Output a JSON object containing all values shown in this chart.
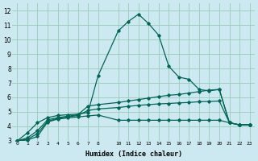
{
  "xlabel": "Humidex (Indice chaleur)",
  "background_color": "#cce8f0",
  "grid_color": "#99ccbb",
  "line_color": "#006655",
  "xlim": [
    -0.5,
    23.5
  ],
  "ylim": [
    3,
    12.5
  ],
  "xticks": [
    0,
    1,
    2,
    3,
    4,
    5,
    6,
    7,
    8,
    10,
    11,
    12,
    13,
    14,
    15,
    16,
    17,
    18,
    19,
    20,
    21,
    22,
    23
  ],
  "yticks": [
    3,
    4,
    5,
    6,
    7,
    8,
    9,
    10,
    11,
    12
  ],
  "lines": [
    {
      "x": [
        0,
        1,
        2,
        3,
        4,
        5,
        6,
        7,
        8,
        10,
        11,
        12,
        13,
        14,
        15,
        16,
        17,
        18,
        19,
        20,
        21,
        22,
        23
      ],
      "y": [
        3.0,
        3.55,
        4.25,
        4.6,
        4.75,
        4.8,
        4.85,
        4.95,
        7.5,
        10.6,
        11.25,
        11.75,
        11.1,
        10.3,
        8.15,
        7.4,
        7.25,
        6.55,
        6.45,
        6.55,
        4.25,
        4.1,
        4.1
      ]
    },
    {
      "x": [
        0,
        1,
        2,
        3,
        4,
        5,
        6,
        7,
        8,
        10,
        11,
        12,
        13,
        14,
        15,
        16,
        17,
        18,
        19,
        20,
        21,
        22,
        23
      ],
      "y": [
        3.0,
        3.2,
        3.7,
        4.45,
        4.6,
        4.7,
        4.8,
        5.4,
        5.5,
        5.65,
        5.75,
        5.85,
        5.95,
        6.05,
        6.15,
        6.2,
        6.3,
        6.4,
        6.5,
        6.55,
        4.25,
        4.1,
        4.1
      ]
    },
    {
      "x": [
        0,
        1,
        2,
        3,
        4,
        5,
        6,
        7,
        8,
        10,
        11,
        12,
        13,
        14,
        15,
        16,
        17,
        18,
        19,
        20,
        21,
        22,
        23
      ],
      "y": [
        3.0,
        3.1,
        3.5,
        4.35,
        4.55,
        4.65,
        4.75,
        5.1,
        5.2,
        5.3,
        5.38,
        5.45,
        5.5,
        5.55,
        5.58,
        5.62,
        5.65,
        5.7,
        5.72,
        5.75,
        4.25,
        4.1,
        4.1
      ]
    },
    {
      "x": [
        0,
        1,
        2,
        3,
        4,
        5,
        6,
        7,
        8,
        10,
        11,
        12,
        13,
        14,
        15,
        16,
        17,
        18,
        19,
        20,
        21,
        22,
        23
      ],
      "y": [
        3.0,
        3.05,
        3.3,
        4.3,
        4.5,
        4.58,
        4.65,
        4.72,
        4.78,
        4.42,
        4.42,
        4.42,
        4.42,
        4.42,
        4.42,
        4.42,
        4.42,
        4.42,
        4.42,
        4.42,
        4.25,
        4.1,
        4.1
      ]
    }
  ]
}
